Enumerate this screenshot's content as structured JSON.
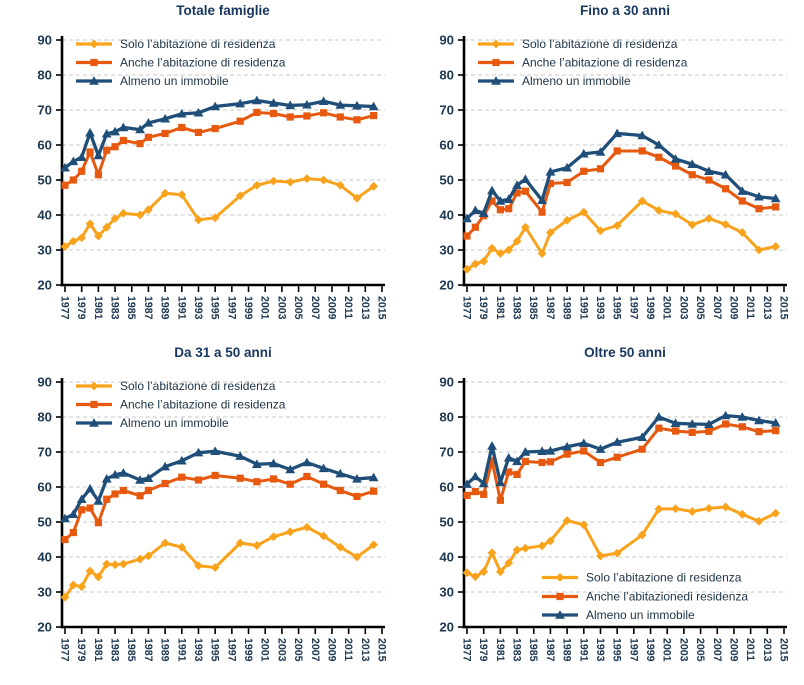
{
  "colors": {
    "solo": "#F9A21B",
    "anche": "#E6590E",
    "almeno": "#1F4E79",
    "grid": "#C8C8C8",
    "axis": "#000000",
    "title_text": "#17375E",
    "tick_label": "#203A53",
    "legend_text": "#20364A",
    "background": "#FFFFFF"
  },
  "axis": {
    "y_min": 20,
    "y_max": 90,
    "y_ticks": [
      20,
      30,
      40,
      50,
      60,
      70,
      80,
      90
    ],
    "x_tick_years": [
      1977,
      1979,
      1981,
      1983,
      1985,
      1987,
      1989,
      1991,
      1993,
      1995,
      1997,
      1999,
      2001,
      2003,
      2005,
      2007,
      2009,
      2011,
      2013,
      2015
    ],
    "grid_style": "dashed"
  },
  "chart_data": [
    {
      "type": "line",
      "title": "Totale famiglie",
      "ylim": [
        20,
        90
      ],
      "legend_position": "top-left",
      "x": [
        1977,
        1978,
        1979,
        1980,
        1981,
        1982,
        1983,
        1984,
        1986,
        1987,
        1989,
        1991,
        1993,
        1995,
        1998,
        2000,
        2002,
        2004,
        2006,
        2008,
        2010,
        2012,
        2014
      ],
      "series": [
        {
          "name": "Solo l’abitazione di residenza",
          "color": "solo",
          "marker": "diamond",
          "values": [
            31,
            32.5,
            33.5,
            37.5,
            34,
            36.5,
            39,
            40.5,
            40,
            41.5,
            46.2,
            45.8,
            38.6,
            39.2,
            45.5,
            48.5,
            49.7,
            49.4,
            50.4,
            50,
            48.5,
            44.8,
            48.2
          ]
        },
        {
          "name": "Anche l’abitazione di residenza",
          "color": "anche",
          "marker": "square",
          "values": [
            48.5,
            50,
            52.5,
            58,
            51.5,
            58.5,
            59.5,
            61.3,
            60.4,
            62.2,
            63.3,
            65,
            63.6,
            64.7,
            66.8,
            69.3,
            69,
            68,
            68.3,
            69.2,
            68,
            67.2,
            68.4
          ]
        },
        {
          "name": "Almeno un immobile",
          "color": "almeno",
          "marker": "triangle",
          "values": [
            53.5,
            55.3,
            56.5,
            63.5,
            57,
            63.2,
            63.8,
            65,
            64.4,
            66.3,
            67.5,
            68.9,
            69.2,
            71,
            71.8,
            72.7,
            72,
            71.3,
            71.5,
            72.5,
            71.4,
            71.2,
            71
          ]
        }
      ]
    },
    {
      "type": "line",
      "title": "Fino a 30 anni",
      "ylim": [
        20,
        90
      ],
      "legend_position": "top-left",
      "x": [
        1977,
        1978,
        1979,
        1980,
        1981,
        1982,
        1983,
        1984,
        1986,
        1987,
        1989,
        1991,
        1993,
        1995,
        1998,
        2000,
        2002,
        2004,
        2006,
        2008,
        2010,
        2012,
        2014
      ],
      "series": [
        {
          "name": "Solo l’abitazione di residenza",
          "color": "solo",
          "marker": "diamond",
          "values": [
            24.5,
            26,
            26.8,
            30.5,
            29,
            30,
            32.5,
            36.5,
            29,
            35,
            38.5,
            40.8,
            35.5,
            37,
            44,
            41.3,
            40.3,
            37.2,
            39,
            37.3,
            35,
            30,
            31
          ]
        },
        {
          "name": "Anche l’abitazione di residenza",
          "color": "anche",
          "marker": "square",
          "values": [
            34,
            36.5,
            39.8,
            44,
            41.5,
            41.8,
            46.3,
            46.8,
            40.8,
            49,
            49.3,
            52.5,
            53.2,
            58.3,
            58.3,
            56.5,
            54,
            51.5,
            50,
            47.5,
            44,
            41.8,
            42.3
          ]
        },
        {
          "name": "Almeno un immobile",
          "color": "almeno",
          "marker": "triangle",
          "values": [
            39,
            41.3,
            40.5,
            47,
            44,
            44.5,
            48.5,
            50.2,
            44.2,
            52.3,
            53.5,
            57.5,
            58,
            63.3,
            62.7,
            60,
            56,
            54.5,
            52.5,
            51.5,
            46.8,
            45.2,
            44.7
          ]
        }
      ]
    },
    {
      "type": "line",
      "title": "Da 31 a 50 anni",
      "ylim": [
        20,
        90
      ],
      "legend_position": "top-left",
      "x": [
        1977,
        1978,
        1979,
        1980,
        1981,
        1982,
        1983,
        1984,
        1986,
        1987,
        1989,
        1991,
        1993,
        1995,
        1998,
        2000,
        2002,
        2004,
        2006,
        2008,
        2010,
        2012,
        2014
      ],
      "series": [
        {
          "name": "Solo l’abitazione di residenza",
          "color": "solo",
          "marker": "diamond",
          "values": [
            28.5,
            32,
            31.5,
            36,
            34.3,
            38,
            37.8,
            38,
            39.4,
            40.3,
            44,
            42.8,
            37.5,
            37,
            44,
            43.3,
            45.8,
            47.2,
            48.5,
            46,
            42.8,
            40,
            43.5
          ]
        },
        {
          "name": "Anche l’abitazione di residenza",
          "color": "anche",
          "marker": "square",
          "values": [
            45,
            47,
            53.5,
            54,
            49.8,
            56.5,
            58,
            59,
            57.5,
            59,
            61,
            62.8,
            62,
            63.3,
            62.5,
            61.5,
            62.3,
            60.8,
            63,
            60.8,
            59,
            57.3,
            58.8
          ]
        },
        {
          "name": "Almeno un immobile",
          "color": "almeno",
          "marker": "triangle",
          "values": [
            51,
            52.2,
            56.5,
            59.5,
            56,
            62.3,
            63.5,
            64,
            62,
            62.5,
            65.8,
            67.5,
            69.8,
            70.2,
            68.8,
            66.5,
            66.7,
            65,
            67,
            65.3,
            63.8,
            62.3,
            62.7
          ]
        }
      ]
    },
    {
      "type": "line",
      "title": "Oltre 50 anni",
      "ylim": [
        20,
        90
      ],
      "legend_position": "bottom-right",
      "x": [
        1977,
        1978,
        1979,
        1980,
        1981,
        1982,
        1983,
        1984,
        1986,
        1987,
        1989,
        1991,
        1993,
        1995,
        1998,
        2000,
        2002,
        2004,
        2006,
        2008,
        2010,
        2012,
        2014
      ],
      "series": [
        {
          "name": "Solo l’abitazione di residenza",
          "color": "solo",
          "marker": "diamond",
          "values": [
            35.5,
            34.4,
            35.8,
            41.2,
            35.8,
            38.3,
            42,
            42.5,
            43.2,
            44.6,
            50.4,
            49.2,
            40.3,
            41.1,
            46.3,
            53.7,
            53.8,
            53,
            53.9,
            54.3,
            52.2,
            50.2,
            52.5
          ]
        },
        {
          "name": "Anche l’abitazionedi residenza",
          "color": "anche",
          "marker": "square",
          "values": [
            57.6,
            58.7,
            57.9,
            67.5,
            56.2,
            64.3,
            63.6,
            67.3,
            67,
            67.2,
            69.4,
            70.3,
            67,
            68.5,
            70.8,
            76.8,
            76,
            75.6,
            75.9,
            78,
            77.2,
            75.8,
            76.1
          ]
        },
        {
          "name": "Almeno un immobile",
          "color": "almeno",
          "marker": "triangle",
          "values": [
            60.8,
            63,
            61,
            71.7,
            61.3,
            68.3,
            67.3,
            70,
            70.2,
            70.3,
            71.5,
            72.5,
            70.8,
            72.8,
            74.2,
            80,
            78.2,
            78,
            77.9,
            80.4,
            80,
            79,
            78.3
          ]
        }
      ]
    }
  ]
}
